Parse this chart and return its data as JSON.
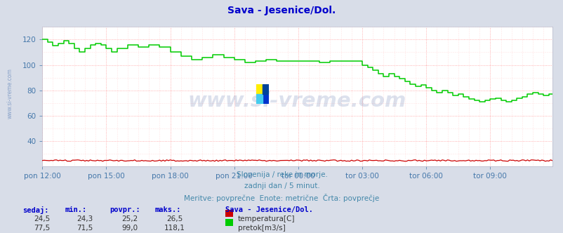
{
  "title": "Sava - Jesenice/Dol.",
  "title_color": "#0000cc",
  "bg_color": "#d8dde8",
  "plot_bg_color": "#ffffff",
  "grid_color_major": "#ff9999",
  "grid_color_minor": "#ffcccc",
  "tick_label_color": "#4477aa",
  "x_tick_labels": [
    "pon 12:00",
    "pon 15:00",
    "pon 18:00",
    "pon 21:00",
    "tor 00:00",
    "tor 03:00",
    "tor 06:00",
    "tor 09:00"
  ],
  "x_tick_positions": [
    0,
    36,
    72,
    108,
    144,
    180,
    216,
    252
  ],
  "ylim": [
    20,
    130
  ],
  "yticks": [
    40,
    60,
    80,
    100,
    120
  ],
  "xlim": [
    0,
    287
  ],
  "watermark": "www.si-vreme.com",
  "watermark_color": "#1a3a8a",
  "watermark_alpha": 0.15,
  "subtitle1": "Slovenija / reke in morje.",
  "subtitle2": "zadnji dan / 5 minut.",
  "subtitle3": "Meritve: povprečne  Enote: metrične  Črta: povprečje",
  "subtitle_color": "#4488aa",
  "footer_color": "#0000cc",
  "legend_title": "Sava - Jesenice/Dol.",
  "temp_color": "#cc0000",
  "flow_color": "#00cc00",
  "temp_label": "temperatura[C]",
  "flow_label": "pretok[m3/s]",
  "table_headers": [
    "sedaj:",
    "min.:",
    "povpr.:",
    "maks.:"
  ],
  "table_temp": [
    "24,5",
    "24,3",
    "25,2",
    "26,5"
  ],
  "table_flow": [
    "77,5",
    "71,5",
    "99,0",
    "118,1"
  ],
  "left_watermark": "www.si-vreme.com",
  "left_wm_color": "#6688bb",
  "n_points": 288
}
